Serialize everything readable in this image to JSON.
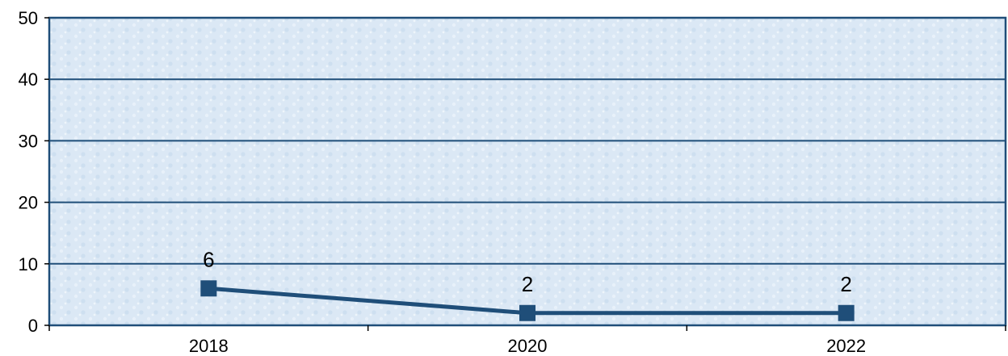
{
  "chart_data": {
    "type": "line",
    "title": "",
    "xlabel": "",
    "ylabel": "",
    "categories": [
      "2018",
      "2020",
      "2022"
    ],
    "series": [
      {
        "values": [
          6,
          2,
          2
        ],
        "color": "#1f4e79"
      }
    ],
    "ylim": [
      0,
      50
    ],
    "yticks": [
      0,
      10,
      20,
      30,
      40,
      50
    ],
    "data_labels": [
      "6",
      "2",
      "2"
    ],
    "grid": true,
    "legend": "none",
    "colors": {
      "plot_background": "#dce9f5",
      "gridline": "#1f4e79",
      "frame": "#1f4e79",
      "line": "#1f4e79",
      "marker": "#1f4e79"
    }
  }
}
